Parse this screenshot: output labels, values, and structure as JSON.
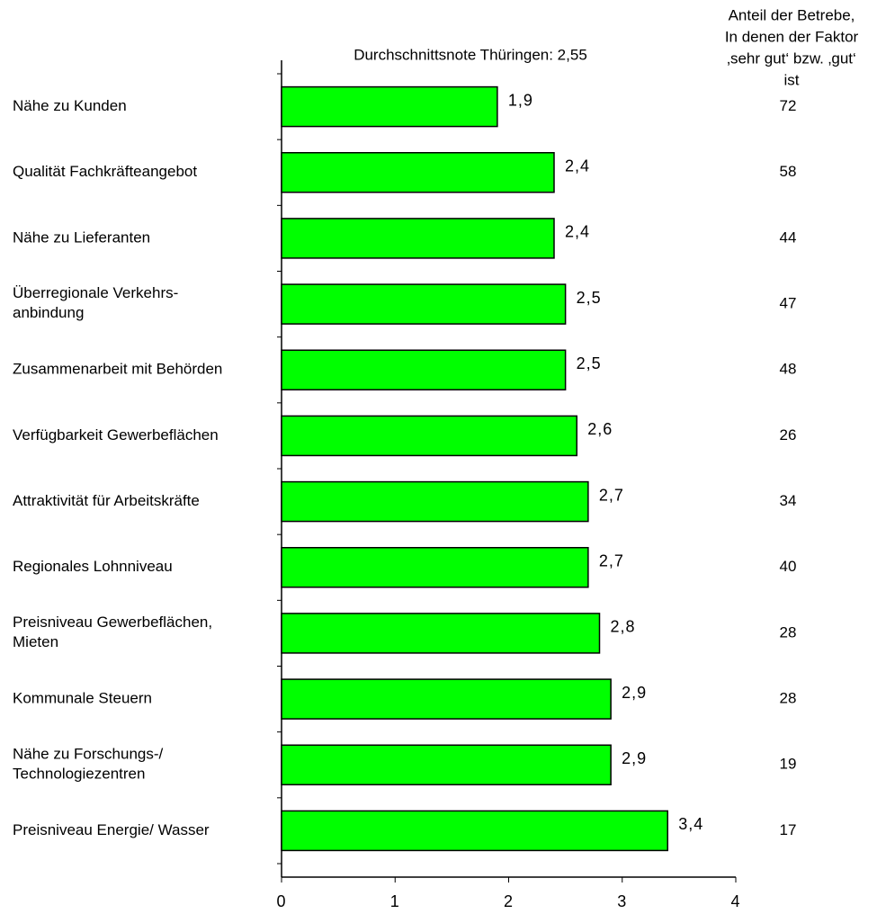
{
  "chart_data": {
    "type": "bar",
    "orientation": "horizontal",
    "title": "Durchschnittsnote Thüringen: 2,55",
    "categories": [
      "Nähe zu Kunden",
      "Qualität Fachkräfteangebot",
      "Nähe zu Lieferanten",
      "Überregionale Verkehrs-\nanbindung",
      "Zusammenarbeit mit Behörden",
      "Verfügbarkeit Gewerbeflächen",
      "Attraktivität für Arbeitskräfte",
      "Regionales Lohnniveau",
      "Preisniveau Gewerbeflächen,\nMieten",
      "Kommunale Steuern",
      "Nähe zu Forschungs-/\nTechnologiezentren",
      "Preisniveau Energie/ Wasser"
    ],
    "values": [
      1.9,
      2.4,
      2.4,
      2.5,
      2.5,
      2.6,
      2.7,
      2.7,
      2.8,
      2.9,
      2.9,
      3.4
    ],
    "value_labels": [
      "1,9",
      "2,4",
      "2,4",
      "2,5",
      "2,5",
      "2,6",
      "2,7",
      "2,7",
      "2,8",
      "2,9",
      "2,9",
      "3,4"
    ],
    "color": "#00ff00",
    "xlim": [
      0,
      4
    ],
    "xticks": [
      0,
      1,
      2,
      3,
      4
    ],
    "share_title": [
      "Anteil der Betrebe,",
      "In denen der Faktor",
      "‚sehr gut‘ bzw. ‚gut‘",
      "ist"
    ],
    "share_values": [
      72,
      58,
      44,
      47,
      48,
      26,
      34,
      40,
      28,
      28,
      19,
      17
    ]
  }
}
